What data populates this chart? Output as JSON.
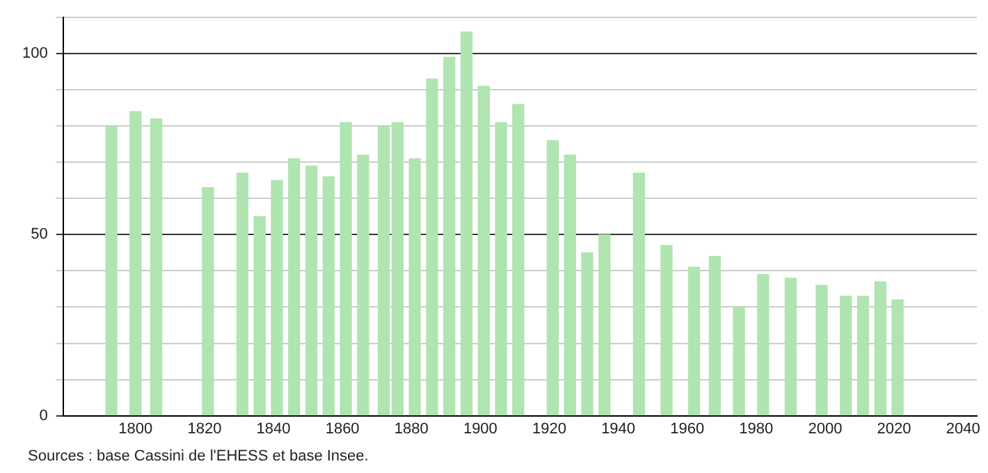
{
  "chart_data": {
    "type": "bar",
    "x": [
      1793,
      1800,
      1806,
      1821,
      1831,
      1836,
      1841,
      1846,
      1851,
      1856,
      1861,
      1866,
      1872,
      1876,
      1881,
      1886,
      1891,
      1896,
      1901,
      1906,
      1911,
      1921,
      1926,
      1931,
      1936,
      1946,
      1954,
      1962,
      1968,
      1975,
      1982,
      1990,
      1999,
      2006,
      2011,
      2016,
      2021
    ],
    "values": [
      80,
      84,
      82,
      63,
      67,
      55,
      65,
      71,
      69,
      66,
      81,
      72,
      80,
      81,
      71,
      93,
      99,
      106,
      91,
      81,
      86,
      76,
      72,
      45,
      50,
      67,
      47,
      41,
      44,
      30,
      39,
      38,
      36,
      33,
      33,
      37,
      32
    ],
    "color": "#b0e4b0",
    "xlim": [
      1779,
      2044
    ],
    "xticks": [
      1800,
      1820,
      1840,
      1860,
      1880,
      1900,
      1920,
      1940,
      1960,
      1980,
      2000,
      2020,
      2040
    ],
    "ylim": [
      0,
      110
    ],
    "yticks": [
      0,
      {
        "value": 10,
        "label": null
      },
      {
        "value": 20,
        "label": null
      },
      {
        "value": 30,
        "label": null
      },
      {
        "value": 40,
        "label": null
      },
      50,
      {
        "value": 60,
        "label": null
      },
      {
        "value": 70,
        "label": null
      },
      {
        "value": 80,
        "label": null
      },
      {
        "value": 90,
        "label": null
      },
      100,
      {
        "value": 110,
        "label": null
      }
    ],
    "grid": "y",
    "annotations": [
      "Sources : base Cassini de l'EHESS et base Insee."
    ]
  }
}
